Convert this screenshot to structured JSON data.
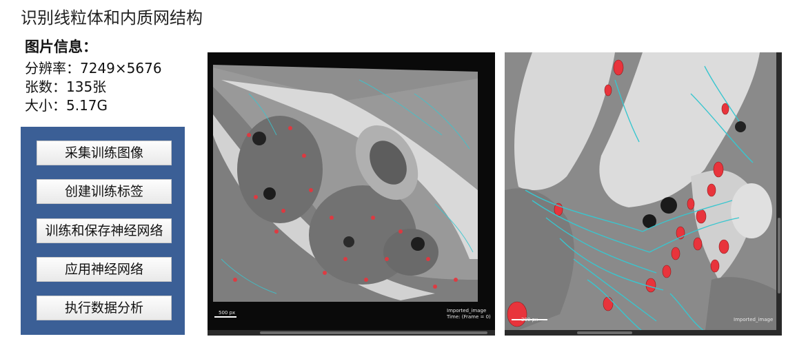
{
  "page": {
    "title": "识别线粒体和内质网结构"
  },
  "image_info": {
    "heading": "图片信息：",
    "resolution": "分辨率：7249×5676",
    "count": "张数：135张",
    "size": "大小：5.17G"
  },
  "workflow": {
    "buttons": [
      "采集训练图像",
      "创建训练标签",
      "训练和保存神经网络",
      "应用神经网络",
      "执行数据分析"
    ]
  },
  "viewer_overview": {
    "scale_label": "500 px",
    "image_name": "Imported_image",
    "time_label": "Time:  (Frame = 0)"
  },
  "viewer_zoom": {
    "scale_label": "200 px",
    "image_name": "Imported_image"
  },
  "colors": {
    "panel": "#3b5f96",
    "mitochondria": "#e8343c",
    "er": "#39c6cf"
  }
}
